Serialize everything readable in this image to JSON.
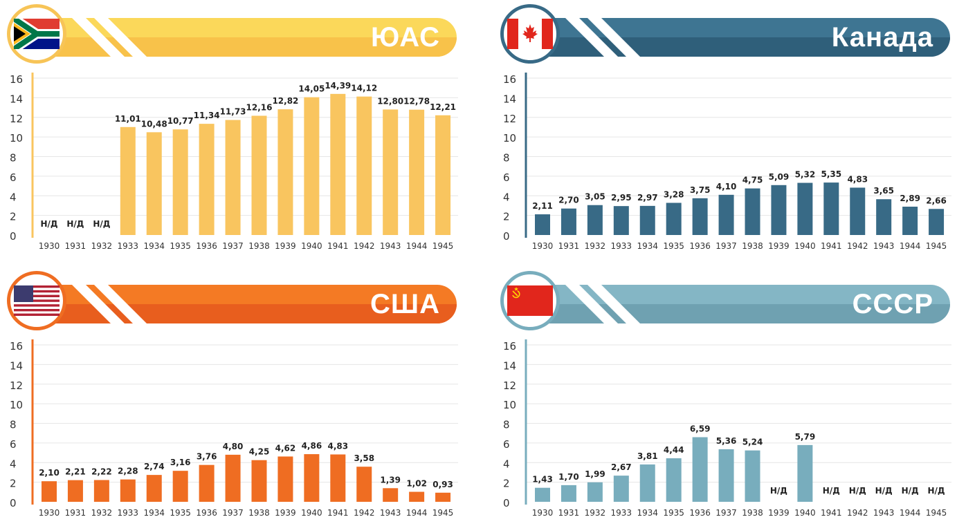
{
  "colors": {
    "yuas": "#f9c55f",
    "kanada": "#386a86",
    "usa": "#ef6d22",
    "ussr": "#78adbd"
  },
  "panels": {
    "yuas": {
      "country": "ЮАС",
      "flag": "south-africa-flag"
    },
    "kanada": {
      "country": "Канада",
      "flag": "canada-flag"
    },
    "usa": {
      "country": "США",
      "flag": "usa-flag"
    },
    "ussr": {
      "country": "СССР",
      "flag": "ussr-flag"
    }
  },
  "chart_data": [
    {
      "type": "bar",
      "title": "ЮАС",
      "categories": [
        "1930",
        "1931",
        "1932",
        "1933",
        "1934",
        "1935",
        "1936",
        "1937",
        "1938",
        "1939",
        "1940",
        "1941",
        "1942",
        "1943",
        "1944",
        "1945"
      ],
      "values": [
        null,
        null,
        null,
        11.01,
        10.48,
        10.77,
        11.34,
        11.73,
        12.16,
        12.82,
        14.05,
        14.39,
        14.12,
        12.8,
        12.78,
        12.21
      ],
      "labels": [
        "Н/Д",
        "Н/Д",
        "Н/Д",
        "11,01",
        "10,48",
        "10,77",
        "11,34",
        "11,73",
        "12,16",
        "12,82",
        "14,05",
        "14,39",
        "14,12",
        "12,80",
        "12,78",
        "12,21"
      ],
      "yticks": [
        "0",
        "2",
        "4",
        "6",
        "8",
        "10",
        "12",
        "14",
        "16"
      ],
      "ylim": [
        0,
        16
      ]
    },
    {
      "type": "bar",
      "title": "Канада",
      "categories": [
        "1930",
        "1931",
        "1932",
        "1933",
        "1934",
        "1935",
        "1936",
        "1937",
        "1938",
        "1939",
        "1940",
        "1941",
        "1942",
        "1943",
        "1944",
        "1945"
      ],
      "values": [
        2.11,
        2.7,
        3.05,
        2.95,
        2.97,
        3.28,
        3.75,
        4.1,
        4.75,
        5.09,
        5.32,
        5.35,
        4.83,
        3.65,
        2.89,
        2.66
      ],
      "labels": [
        "2,11",
        "2,70",
        "3,05",
        "2,95",
        "2,97",
        "3,28",
        "3,75",
        "4,10",
        "4,75",
        "5,09",
        "5,32",
        "5,35",
        "4,83",
        "3,65",
        "2,89",
        "2,66"
      ],
      "yticks": [
        "0",
        "2",
        "4",
        "6",
        "8",
        "10",
        "12",
        "14",
        "16"
      ],
      "ylim": [
        0,
        16
      ]
    },
    {
      "type": "bar",
      "title": "США",
      "categories": [
        "1930",
        "1931",
        "1932",
        "1933",
        "1934",
        "1935",
        "1936",
        "1937",
        "1938",
        "1939",
        "1940",
        "1941",
        "1942",
        "1943",
        "1944",
        "1945"
      ],
      "values": [
        2.1,
        2.21,
        2.22,
        2.28,
        2.74,
        3.16,
        3.76,
        4.8,
        4.25,
        4.62,
        4.86,
        4.83,
        3.58,
        1.39,
        1.02,
        0.93
      ],
      "labels": [
        "2,10",
        "2,21",
        "2,22",
        "2,28",
        "2,74",
        "3,16",
        "3,76",
        "4,80",
        "4,25",
        "4,62",
        "4,86",
        "4,83",
        "3,58",
        "1,39",
        "1,02",
        "0,93"
      ],
      "yticks": [
        "0",
        "2",
        "4",
        "6",
        "8",
        "10",
        "12",
        "14",
        "16"
      ],
      "ylim": [
        0,
        16
      ]
    },
    {
      "type": "bar",
      "title": "СССР",
      "categories": [
        "1930",
        "1931",
        "1932",
        "1933",
        "1934",
        "1935",
        "1936",
        "1937",
        "1938",
        "1939",
        "1940",
        "1941",
        "1942",
        "1943",
        "1944",
        "1945"
      ],
      "values": [
        1.43,
        1.7,
        1.99,
        2.67,
        3.81,
        4.44,
        6.59,
        5.36,
        5.24,
        null,
        5.79,
        null,
        null,
        null,
        null,
        null
      ],
      "labels": [
        "1,43",
        "1,70",
        "1,99",
        "2,67",
        "3,81",
        "4,44",
        "6,59",
        "5,36",
        "5,24",
        "Н/Д",
        "5,79",
        "Н/Д",
        "Н/Д",
        "Н/Д",
        "Н/Д",
        "Н/Д"
      ],
      "yticks": [
        "0",
        "2",
        "4",
        "6",
        "8",
        "10",
        "12",
        "14",
        "16"
      ],
      "ylim": [
        0,
        16
      ]
    }
  ]
}
